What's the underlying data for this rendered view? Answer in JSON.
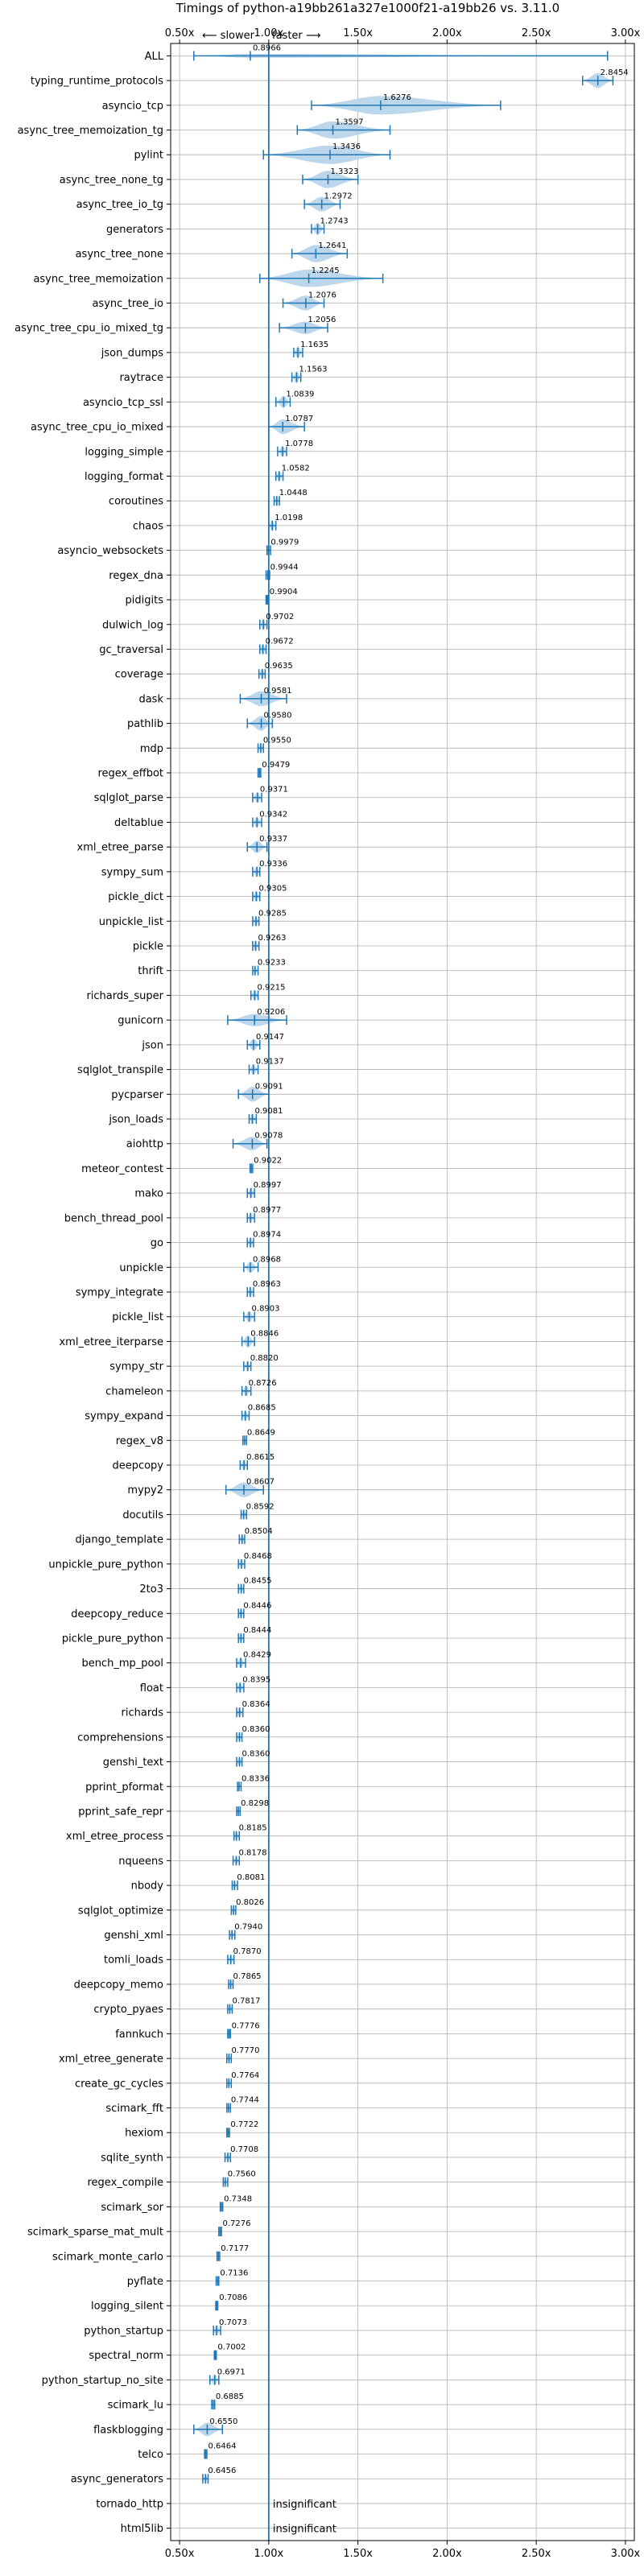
{
  "chart_data": {
    "type": "violin",
    "title": "Timings of python-a19bb261a327e1000f21-a19bb26 vs. 3.11.0",
    "direction_labels": {
      "slower": "⟵ slower",
      "faster": "faster ⟶"
    },
    "xlim": [
      0.45,
      3.05
    ],
    "xticks": [
      0.5,
      1.0,
      1.5,
      2.0,
      2.5,
      3.0
    ],
    "xtick_labels": [
      "0.50x",
      "1.00x",
      "1.50x",
      "2.00x",
      "2.50x",
      "3.00x"
    ],
    "reference_x": 1.0,
    "grid": true,
    "insignificant_label": "insignificant",
    "rows": [
      {
        "name": "ALL",
        "value": 0.8966,
        "label": "0.8966",
        "low": 0.58,
        "high": 2.9,
        "width": 0.1
      },
      {
        "name": "typing_runtime_protocols",
        "value": 2.8454,
        "label": "2.8454",
        "low": 2.76,
        "high": 2.93,
        "width": 0.6
      },
      {
        "name": "asyncio_tcp",
        "value": 1.6276,
        "label": "1.6276",
        "low": 1.24,
        "high": 2.3,
        "width": 0.75
      },
      {
        "name": "async_tree_memoization_tg",
        "value": 1.3597,
        "label": "1.3597",
        "low": 1.16,
        "high": 1.68,
        "width": 0.7
      },
      {
        "name": "pylint",
        "value": 1.3436,
        "label": "1.3436",
        "low": 0.97,
        "high": 1.68,
        "width": 0.75
      },
      {
        "name": "async_tree_none_tg",
        "value": 1.3323,
        "label": "1.3323",
        "low": 1.19,
        "high": 1.5,
        "width": 0.7
      },
      {
        "name": "async_tree_io_tg",
        "value": 1.2972,
        "label": "1.2972",
        "low": 1.2,
        "high": 1.4,
        "width": 0.6
      },
      {
        "name": "generators",
        "value": 1.2743,
        "label": "1.2743",
        "low": 1.24,
        "high": 1.31,
        "width": 0.5
      },
      {
        "name": "async_tree_none",
        "value": 1.2641,
        "label": "1.2641",
        "low": 1.13,
        "high": 1.44,
        "width": 0.7
      },
      {
        "name": "async_tree_memoization",
        "value": 1.2245,
        "label": "1.2245",
        "low": 0.95,
        "high": 1.64,
        "width": 0.7
      },
      {
        "name": "async_tree_io",
        "value": 1.2076,
        "label": "1.2076",
        "low": 1.08,
        "high": 1.31,
        "width": 0.6
      },
      {
        "name": "async_tree_cpu_io_mixed_tg",
        "value": 1.2056,
        "label": "1.2056",
        "low": 1.06,
        "high": 1.33,
        "width": 0.5
      },
      {
        "name": "json_dumps",
        "value": 1.1635,
        "label": "1.1635",
        "low": 1.14,
        "high": 1.19,
        "width": 0.5
      },
      {
        "name": "raytrace",
        "value": 1.1563,
        "label": "1.1563",
        "low": 1.13,
        "high": 1.18,
        "width": 0.5
      },
      {
        "name": "asyncio_tcp_ssl",
        "value": 1.0839,
        "label": "1.0839",
        "low": 1.04,
        "high": 1.12,
        "width": 0.5
      },
      {
        "name": "async_tree_cpu_io_mixed",
        "value": 1.0787,
        "label": "1.0787",
        "low": 1.0,
        "high": 1.2,
        "width": 0.6
      },
      {
        "name": "logging_simple",
        "value": 1.0778,
        "label": "1.0778",
        "low": 1.05,
        "high": 1.1,
        "width": 0.45
      },
      {
        "name": "logging_format",
        "value": 1.0582,
        "label": "1.0582",
        "low": 1.04,
        "high": 1.08,
        "width": 0.45
      },
      {
        "name": "coroutines",
        "value": 1.0448,
        "label": "1.0448",
        "low": 1.03,
        "high": 1.06,
        "width": 0.45
      },
      {
        "name": "chaos",
        "value": 1.0198,
        "label": "1.0198",
        "low": 1.0,
        "high": 1.04,
        "width": 0.45
      },
      {
        "name": "asyncio_websockets",
        "value": 0.9979,
        "label": "0.9979",
        "low": 0.99,
        "high": 1.01,
        "width": 0.3
      },
      {
        "name": "regex_dna",
        "value": 0.9944,
        "label": "0.9944",
        "low": 0.985,
        "high": 1.005,
        "width": 0.3
      },
      {
        "name": "pidigits",
        "value": 0.9904,
        "label": "0.9904",
        "low": 0.985,
        "high": 0.995,
        "width": 0.3
      },
      {
        "name": "dulwich_log",
        "value": 0.9702,
        "label": "0.9702",
        "low": 0.95,
        "high": 0.99,
        "width": 0.45
      },
      {
        "name": "gc_traversal",
        "value": 0.9672,
        "label": "0.9672",
        "low": 0.95,
        "high": 0.985,
        "width": 0.45
      },
      {
        "name": "coverage",
        "value": 0.9635,
        "label": "0.9635",
        "low": 0.945,
        "high": 0.98,
        "width": 0.45
      },
      {
        "name": "dask",
        "value": 0.9581,
        "label": "0.9581",
        "low": 0.84,
        "high": 1.1,
        "width": 0.6
      },
      {
        "name": "pathlib",
        "value": 0.958,
        "label": "0.9580",
        "low": 0.88,
        "high": 1.02,
        "width": 0.6
      },
      {
        "name": "mdp",
        "value": 0.955,
        "label": "0.9550",
        "low": 0.94,
        "high": 0.97,
        "width": 0.45
      },
      {
        "name": "regex_effbot",
        "value": 0.9479,
        "label": "0.9479",
        "low": 0.94,
        "high": 0.955,
        "width": 0.25
      },
      {
        "name": "sqlglot_parse",
        "value": 0.9371,
        "label": "0.9371",
        "low": 0.91,
        "high": 0.96,
        "width": 0.45
      },
      {
        "name": "deltablue",
        "value": 0.9342,
        "label": "0.9342",
        "low": 0.91,
        "high": 0.96,
        "width": 0.45
      },
      {
        "name": "xml_etree_parse",
        "value": 0.9337,
        "label": "0.9337",
        "low": 0.88,
        "high": 0.99,
        "width": 0.5
      },
      {
        "name": "sympy_sum",
        "value": 0.9336,
        "label": "0.9336",
        "low": 0.91,
        "high": 0.95,
        "width": 0.45
      },
      {
        "name": "pickle_dict",
        "value": 0.9305,
        "label": "0.9305",
        "low": 0.91,
        "high": 0.95,
        "width": 0.45
      },
      {
        "name": "unpickle_list",
        "value": 0.9285,
        "label": "0.9285",
        "low": 0.91,
        "high": 0.945,
        "width": 0.45
      },
      {
        "name": "pickle",
        "value": 0.9263,
        "label": "0.9263",
        "low": 0.91,
        "high": 0.945,
        "width": 0.45
      },
      {
        "name": "thrift",
        "value": 0.9233,
        "label": "0.9233",
        "low": 0.91,
        "high": 0.94,
        "width": 0.35
      },
      {
        "name": "richards_super",
        "value": 0.9215,
        "label": "0.9215",
        "low": 0.9,
        "high": 0.94,
        "width": 0.45
      },
      {
        "name": "gunicorn",
        "value": 0.9206,
        "label": "0.9206",
        "low": 0.77,
        "high": 1.1,
        "width": 0.5
      },
      {
        "name": "json",
        "value": 0.9147,
        "label": "0.9147",
        "low": 0.88,
        "high": 0.95,
        "width": 0.5
      },
      {
        "name": "sqlglot_transpile",
        "value": 0.9137,
        "label": "0.9137",
        "low": 0.89,
        "high": 0.94,
        "width": 0.45
      },
      {
        "name": "pycparser",
        "value": 0.9091,
        "label": "0.9091",
        "low": 0.83,
        "high": 1.0,
        "width": 0.6
      },
      {
        "name": "json_loads",
        "value": 0.9081,
        "label": "0.9081",
        "low": 0.89,
        "high": 0.93,
        "width": 0.45
      },
      {
        "name": "aiohttp",
        "value": 0.9078,
        "label": "0.9078",
        "low": 0.8,
        "high": 0.99,
        "width": 0.55
      },
      {
        "name": "meteor_contest",
        "value": 0.9022,
        "label": "0.9022",
        "low": 0.895,
        "high": 0.91,
        "width": 0.25
      },
      {
        "name": "mako",
        "value": 0.8997,
        "label": "0.8997",
        "low": 0.88,
        "high": 0.92,
        "width": 0.45
      },
      {
        "name": "bench_thread_pool",
        "value": 0.8977,
        "label": "0.8977",
        "low": 0.88,
        "high": 0.92,
        "width": 0.45
      },
      {
        "name": "go",
        "value": 0.8974,
        "label": "0.8974",
        "low": 0.88,
        "high": 0.915,
        "width": 0.45
      },
      {
        "name": "unpickle",
        "value": 0.8968,
        "label": "0.8968",
        "low": 0.86,
        "high": 0.94,
        "width": 0.45
      },
      {
        "name": "sympy_integrate",
        "value": 0.8963,
        "label": "0.8963",
        "low": 0.88,
        "high": 0.915,
        "width": 0.45
      },
      {
        "name": "pickle_list",
        "value": 0.8903,
        "label": "0.8903",
        "low": 0.86,
        "high": 0.92,
        "width": 0.45
      },
      {
        "name": "xml_etree_iterparse",
        "value": 0.8846,
        "label": "0.8846",
        "low": 0.85,
        "high": 0.92,
        "width": 0.5
      },
      {
        "name": "sympy_str",
        "value": 0.882,
        "label": "0.8820",
        "low": 0.86,
        "high": 0.9,
        "width": 0.45
      },
      {
        "name": "chameleon",
        "value": 0.8726,
        "label": "0.8726",
        "low": 0.85,
        "high": 0.9,
        "width": 0.45
      },
      {
        "name": "sympy_expand",
        "value": 0.8685,
        "label": "0.8685",
        "low": 0.85,
        "high": 0.89,
        "width": 0.45
      },
      {
        "name": "regex_v8",
        "value": 0.8649,
        "label": "0.8649",
        "low": 0.855,
        "high": 0.875,
        "width": 0.3
      },
      {
        "name": "deepcopy",
        "value": 0.8615,
        "label": "0.8615",
        "low": 0.84,
        "high": 0.88,
        "width": 0.45
      },
      {
        "name": "mypy2",
        "value": 0.8607,
        "label": "0.8607",
        "low": 0.76,
        "high": 0.97,
        "width": 0.6
      },
      {
        "name": "docutils",
        "value": 0.8592,
        "label": "0.8592",
        "low": 0.845,
        "high": 0.875,
        "width": 0.4
      },
      {
        "name": "django_template",
        "value": 0.8504,
        "label": "0.8504",
        "low": 0.835,
        "high": 0.865,
        "width": 0.4
      },
      {
        "name": "unpickle_pure_python",
        "value": 0.8468,
        "label": "0.8468",
        "low": 0.83,
        "high": 0.865,
        "width": 0.4
      },
      {
        "name": "2to3",
        "value": 0.8455,
        "label": "0.8455",
        "low": 0.83,
        "high": 0.86,
        "width": 0.4
      },
      {
        "name": "deepcopy_reduce",
        "value": 0.8446,
        "label": "0.8446",
        "low": 0.83,
        "high": 0.86,
        "width": 0.4
      },
      {
        "name": "pickle_pure_python",
        "value": 0.8444,
        "label": "0.8444",
        "low": 0.83,
        "high": 0.86,
        "width": 0.4
      },
      {
        "name": "bench_mp_pool",
        "value": 0.8429,
        "label": "0.8429",
        "low": 0.82,
        "high": 0.87,
        "width": 0.45
      },
      {
        "name": "float",
        "value": 0.8395,
        "label": "0.8395",
        "low": 0.82,
        "high": 0.86,
        "width": 0.45
      },
      {
        "name": "richards",
        "value": 0.8364,
        "label": "0.8364",
        "low": 0.82,
        "high": 0.855,
        "width": 0.4
      },
      {
        "name": "comprehensions",
        "value": 0.836,
        "label": "0.8360",
        "low": 0.82,
        "high": 0.85,
        "width": 0.4
      },
      {
        "name": "genshi_text",
        "value": 0.836,
        "label": "0.8360",
        "low": 0.82,
        "high": 0.85,
        "width": 0.4
      },
      {
        "name": "pprint_pformat",
        "value": 0.8336,
        "label": "0.8336",
        "low": 0.825,
        "high": 0.845,
        "width": 0.35
      },
      {
        "name": "pprint_safe_repr",
        "value": 0.8298,
        "label": "0.8298",
        "low": 0.82,
        "high": 0.84,
        "width": 0.35
      },
      {
        "name": "xml_etree_process",
        "value": 0.8185,
        "label": "0.8185",
        "low": 0.805,
        "high": 0.835,
        "width": 0.4
      },
      {
        "name": "nqueens",
        "value": 0.8178,
        "label": "0.8178",
        "low": 0.8,
        "high": 0.835,
        "width": 0.4
      },
      {
        "name": "nbody",
        "value": 0.8081,
        "label": "0.8081",
        "low": 0.795,
        "high": 0.825,
        "width": 0.4
      },
      {
        "name": "sqlglot_optimize",
        "value": 0.8026,
        "label": "0.8026",
        "low": 0.79,
        "high": 0.815,
        "width": 0.4
      },
      {
        "name": "genshi_xml",
        "value": 0.794,
        "label": "0.7940",
        "low": 0.78,
        "high": 0.81,
        "width": 0.4
      },
      {
        "name": "tomli_loads",
        "value": 0.787,
        "label": "0.7870",
        "low": 0.77,
        "high": 0.805,
        "width": 0.4
      },
      {
        "name": "deepcopy_memo",
        "value": 0.7865,
        "label": "0.7865",
        "low": 0.775,
        "high": 0.8,
        "width": 0.4
      },
      {
        "name": "crypto_pyaes",
        "value": 0.7817,
        "label": "0.7817",
        "low": 0.77,
        "high": 0.795,
        "width": 0.4
      },
      {
        "name": "fannkuch",
        "value": 0.7776,
        "label": "0.7776",
        "low": 0.77,
        "high": 0.785,
        "width": 0.3
      },
      {
        "name": "xml_etree_generate",
        "value": 0.777,
        "label": "0.7770",
        "low": 0.765,
        "high": 0.79,
        "width": 0.35
      },
      {
        "name": "create_gc_cycles",
        "value": 0.7764,
        "label": "0.7764",
        "low": 0.765,
        "high": 0.79,
        "width": 0.35
      },
      {
        "name": "scimark_fft",
        "value": 0.7744,
        "label": "0.7744",
        "low": 0.765,
        "high": 0.785,
        "width": 0.3
      },
      {
        "name": "hexiom",
        "value": 0.7722,
        "label": "0.7722",
        "low": 0.765,
        "high": 0.78,
        "width": 0.3
      },
      {
        "name": "sqlite_synth",
        "value": 0.7708,
        "label": "0.7708",
        "low": 0.755,
        "high": 0.785,
        "width": 0.4
      },
      {
        "name": "regex_compile",
        "value": 0.756,
        "label": "0.7560",
        "low": 0.745,
        "high": 0.77,
        "width": 0.35
      },
      {
        "name": "scimark_sor",
        "value": 0.7348,
        "label": "0.7348",
        "low": 0.728,
        "high": 0.742,
        "width": 0.3
      },
      {
        "name": "scimark_sparse_mat_mult",
        "value": 0.7276,
        "label": "0.7276",
        "low": 0.72,
        "high": 0.735,
        "width": 0.3
      },
      {
        "name": "scimark_monte_carlo",
        "value": 0.7177,
        "label": "0.7177",
        "low": 0.71,
        "high": 0.725,
        "width": 0.3
      },
      {
        "name": "pyflate",
        "value": 0.7136,
        "label": "0.7136",
        "low": 0.705,
        "high": 0.72,
        "width": 0.3
      },
      {
        "name": "logging_silent",
        "value": 0.7086,
        "label": "0.7086",
        "low": 0.703,
        "high": 0.714,
        "width": 0.25
      },
      {
        "name": "python_startup",
        "value": 0.7073,
        "label": "0.7073",
        "low": 0.69,
        "high": 0.73,
        "width": 0.45
      },
      {
        "name": "spectral_norm",
        "value": 0.7002,
        "label": "0.7002",
        "low": 0.695,
        "high": 0.706,
        "width": 0.25
      },
      {
        "name": "python_startup_no_site",
        "value": 0.6971,
        "label": "0.6971",
        "low": 0.67,
        "high": 0.72,
        "width": 0.45
      },
      {
        "name": "scimark_lu",
        "value": 0.6885,
        "label": "0.6885",
        "low": 0.68,
        "high": 0.697,
        "width": 0.3
      },
      {
        "name": "flaskblogging",
        "value": 0.655,
        "label": "0.6550",
        "low": 0.58,
        "high": 0.74,
        "width": 0.55
      },
      {
        "name": "telco",
        "value": 0.6464,
        "label": "0.6464",
        "low": 0.64,
        "high": 0.653,
        "width": 0.25
      },
      {
        "name": "async_generators",
        "value": 0.6456,
        "label": "0.6456",
        "low": 0.63,
        "high": 0.66,
        "width": 0.4
      },
      {
        "name": "tornado_http",
        "value": null,
        "label": "insignificant",
        "low": null,
        "high": null,
        "width": 0
      },
      {
        "name": "html5lib",
        "value": null,
        "label": "insignificant",
        "low": null,
        "high": null,
        "width": 0
      }
    ],
    "colors": {
      "violin": "#b8d4ea",
      "line": "#1f77b4",
      "grid": "#b0b0b0",
      "axis": "#000000",
      "outlier": "#d62728"
    }
  }
}
